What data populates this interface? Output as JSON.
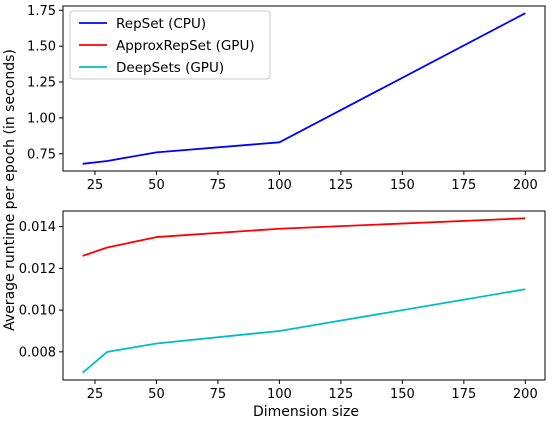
{
  "chart_data": [
    {
      "type": "line",
      "x": [
        20,
        30,
        50,
        100,
        200
      ],
      "series": [
        {
          "name": "RepSet (CPU)",
          "color": "#0000ff",
          "values": [
            0.68,
            0.7,
            0.76,
            0.83,
            1.73
          ]
        },
        {
          "name": "ApproxRepSet (GPU)",
          "color": "#ff0000",
          "values": null
        },
        {
          "name": "DeepSets (GPU)",
          "color": "#00bfbf",
          "values": null
        }
      ],
      "xticks": [
        25,
        50,
        75,
        100,
        125,
        150,
        175,
        200
      ],
      "yticks": [
        0.75,
        1.0,
        1.25,
        1.5,
        1.75
      ],
      "xlim": [
        12,
        208
      ],
      "ylim": [
        0.63,
        1.78
      ],
      "legend": "top-left",
      "grid": false
    },
    {
      "type": "line",
      "x": [
        20,
        30,
        50,
        100,
        200
      ],
      "series": [
        {
          "name": "ApproxRepSet (GPU)",
          "color": "#ff0000",
          "values": [
            0.0126,
            0.013,
            0.0135,
            0.0139,
            0.0144
          ]
        },
        {
          "name": "DeepSets (GPU)",
          "color": "#00bfbf",
          "values": [
            0.007,
            0.008,
            0.0084,
            0.009,
            0.011
          ]
        }
      ],
      "xticks": [
        25,
        50,
        75,
        100,
        125,
        150,
        175,
        200
      ],
      "yticks": [
        0.008,
        0.01,
        0.012,
        0.014
      ],
      "xlim": [
        12,
        208
      ],
      "ylim": [
        0.00665,
        0.01475
      ],
      "grid": false
    }
  ],
  "labels": {
    "xlabel": "Dimension size",
    "ylabel": "Average runtime per epoch (in seconds)"
  },
  "legend": {
    "entries": [
      {
        "label": "RepSet (CPU)",
        "color": "#0000ff"
      },
      {
        "label": "ApproxRepSet (GPU)",
        "color": "#ff0000"
      },
      {
        "label": "DeepSets (GPU)",
        "color": "#00bfbf"
      }
    ]
  }
}
